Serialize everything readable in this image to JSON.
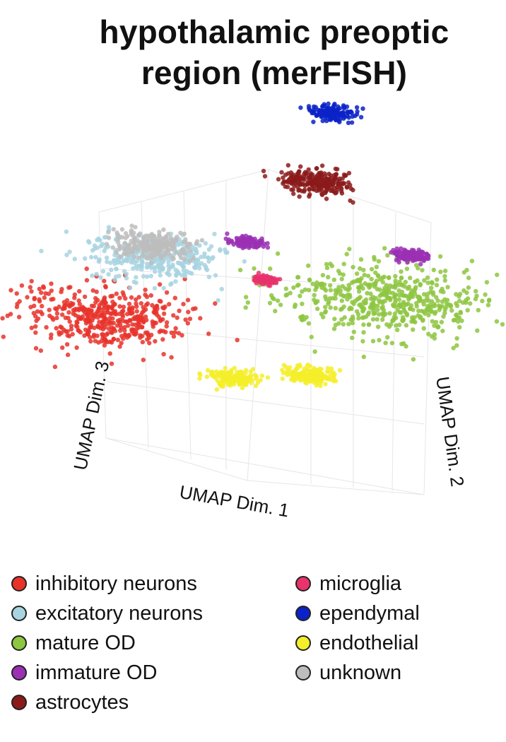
{
  "chart_data": {
    "type": "scatter",
    "title_lines": [
      "hypothalamic preoptic",
      "region (merFISH)"
    ],
    "axes": {
      "x": "UMAP Dim. 1",
      "y": "UMAP Dim. 2",
      "z": "UMAP Dim. 3"
    },
    "grid": true,
    "legend_position": "bottom",
    "series": [
      {
        "name": "inhibitory neurons",
        "color": "#e8332a",
        "clusters": [
          {
            "x": -5.5,
            "y": -4.0,
            "z": -1.8,
            "spread": 2.2
          }
        ]
      },
      {
        "name": "excitatory neurons",
        "color": "#a8d4e0",
        "clusters": [
          {
            "x": -3.8,
            "y": -2.5,
            "z": 1.2,
            "spread": 1.6
          }
        ]
      },
      {
        "name": "mature OD",
        "color": "#8dc63f",
        "clusters": [
          {
            "x": 5.5,
            "y": 1.0,
            "z": -1.0,
            "spread": 2.6
          }
        ]
      },
      {
        "name": "immature OD",
        "color": "#9b30b5",
        "clusters": [
          {
            "x": -0.8,
            "y": 0.4,
            "z": 1.6,
            "spread": 0.4
          },
          {
            "x": 5.8,
            "y": 2.8,
            "z": 1.0,
            "spread": 0.45
          }
        ]
      },
      {
        "name": "astrocytes",
        "color": "#8b1a1a",
        "clusters": [
          {
            "x": 1.5,
            "y": 2.5,
            "z": 4.6,
            "spread": 0.9
          }
        ]
      },
      {
        "name": "microglia",
        "color": "#e8336b",
        "clusters": [
          {
            "x": 0.8,
            "y": -1.2,
            "z": 0.2,
            "spread": 0.3
          }
        ]
      },
      {
        "name": "ependymal",
        "color": "#0b22c8",
        "clusters": [
          {
            "x": 2.2,
            "y": 2.6,
            "z": 8.4,
            "spread": 0.55
          }
        ]
      },
      {
        "name": "endothelial",
        "color": "#f5ef2a",
        "clusters": [
          {
            "x": 0.5,
            "y": -3.8,
            "z": -4.5,
            "spread": 0.6
          },
          {
            "x": 3.2,
            "y": -1.8,
            "z": -4.6,
            "spread": 0.6
          }
        ]
      },
      {
        "name": "unknown",
        "color": "#bdbdbd",
        "clusters": [
          {
            "x": -4.0,
            "y": -2.2,
            "z": 1.8,
            "spread": 1.0
          }
        ]
      }
    ]
  }
}
